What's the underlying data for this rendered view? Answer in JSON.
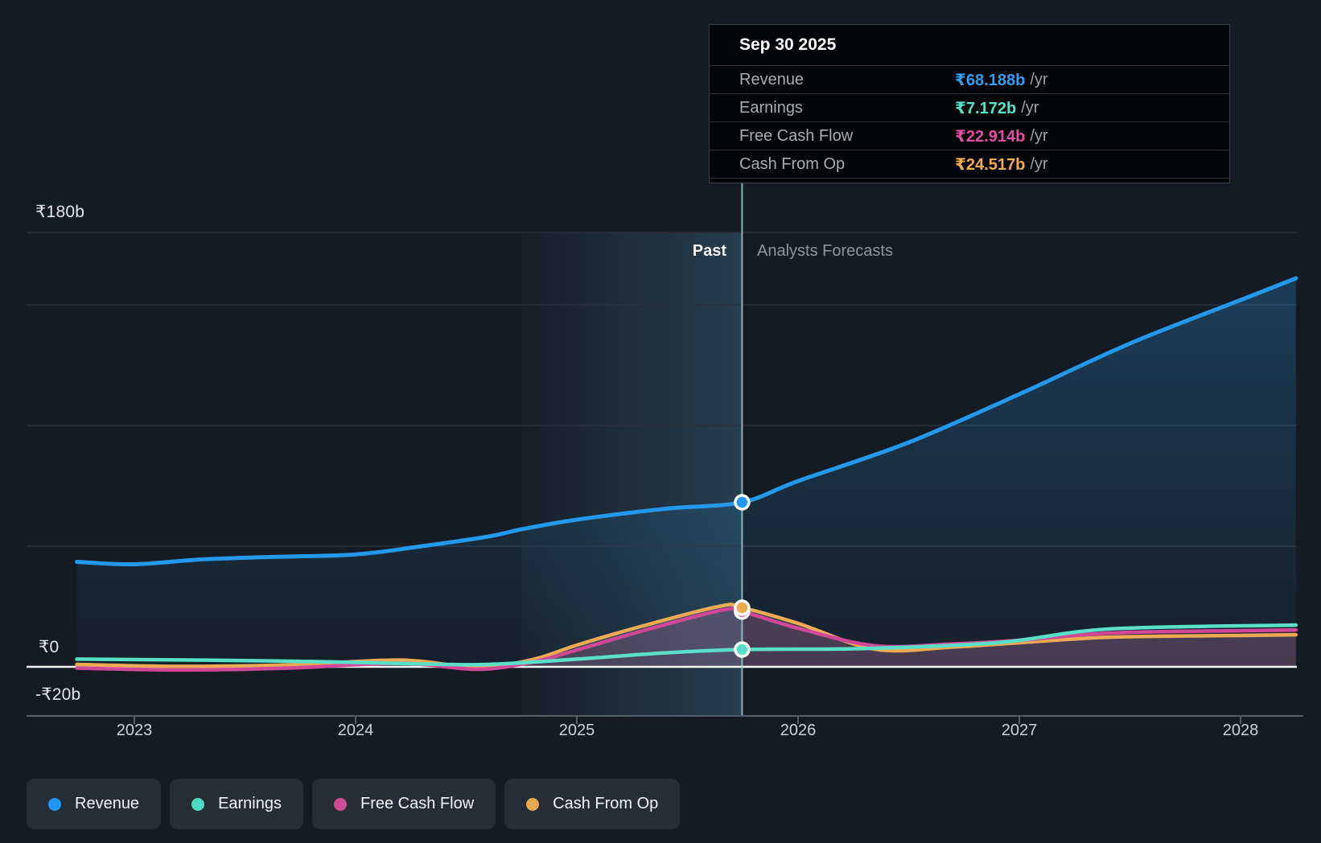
{
  "tooltip": {
    "date": "Sep 30 2025",
    "rows": [
      {
        "label": "Revenue",
        "value": "₹68.188b",
        "unit": "/yr",
        "color": "#2f9ef3"
      },
      {
        "label": "Earnings",
        "value": "₹7.172b",
        "unit": "/yr",
        "color": "#55e3cb"
      },
      {
        "label": "Free Cash Flow",
        "value": "₹22.914b",
        "unit": "/yr",
        "color": "#e64ba4"
      },
      {
        "label": "Cash From Op",
        "value": "₹24.517b",
        "unit": "/yr",
        "color": "#f3ac4f"
      }
    ]
  },
  "annotations": {
    "past": "Past",
    "forecast": "Analysts Forecasts"
  },
  "y_axis": {
    "top": "₹180b",
    "zero": "₹0",
    "bottom": "-₹20b"
  },
  "x_axis": {
    "labels": [
      "2023",
      "2024",
      "2025",
      "2026",
      "2027",
      "2028"
    ]
  },
  "legend": [
    {
      "label": "Revenue",
      "color": "#2196f3"
    },
    {
      "label": "Earnings",
      "color": "#4edbc5"
    },
    {
      "label": "Free Cash Flow",
      "color": "#cf4b96"
    },
    {
      "label": "Cash From Op",
      "color": "#e9a750"
    }
  ],
  "chart_data": {
    "type": "area",
    "x_unit": "year",
    "x_ticks": [
      2023,
      2024,
      2025,
      2026,
      2027,
      2028
    ],
    "ylim": [
      -20,
      180
    ],
    "currency": "INR (₹ billions)",
    "gridline_values": [
      180,
      150,
      100,
      50
    ],
    "zero_value": 0,
    "bottom_value": -20,
    "divider_year": 2025.747,
    "divider_date": "Sep 30 2025",
    "highlight_band": [
      2024.75,
      2025.747
    ],
    "legend_position": "bottom-left",
    "series": [
      {
        "name": "Revenue",
        "color": "#2499ec",
        "width": 5,
        "fill": "revenue",
        "points": [
          [
            2022.74,
            43.5
          ],
          [
            2023.0,
            42.5
          ],
          [
            2023.3,
            44.5
          ],
          [
            2023.6,
            45.5
          ],
          [
            2024.0,
            46.6
          ],
          [
            2024.3,
            50
          ],
          [
            2024.6,
            54
          ],
          [
            2024.75,
            57
          ],
          [
            2025.0,
            61
          ],
          [
            2025.4,
            65.5
          ],
          [
            2025.747,
            68.188
          ],
          [
            2026.0,
            77
          ],
          [
            2026.5,
            93
          ],
          [
            2027.0,
            113
          ],
          [
            2027.5,
            134
          ],
          [
            2028.0,
            152
          ],
          [
            2028.25,
            161
          ]
        ]
      },
      {
        "name": "Cash From Op",
        "color": "#ecaa52",
        "width": 4.5,
        "fill": "gray",
        "points": [
          [
            2022.74,
            1.0
          ],
          [
            2023.2,
            0.2
          ],
          [
            2023.7,
            0.8
          ],
          [
            2024.2,
            2.8
          ],
          [
            2024.55,
            -0.2
          ],
          [
            2024.8,
            3
          ],
          [
            2025.0,
            9
          ],
          [
            2025.3,
            17
          ],
          [
            2025.65,
            25.2
          ],
          [
            2025.747,
            24.517
          ],
          [
            2026.0,
            18
          ],
          [
            2026.35,
            7.3
          ],
          [
            2026.7,
            8.2
          ],
          [
            2027.0,
            10
          ],
          [
            2027.41,
            12.3
          ],
          [
            2028.0,
            13
          ],
          [
            2028.25,
            13.3
          ]
        ]
      },
      {
        "name": "Free Cash Flow",
        "color": "#d24898",
        "width": 4.5,
        "fill": "pink",
        "points": [
          [
            2022.74,
            -0.5
          ],
          [
            2023.2,
            -1.3
          ],
          [
            2023.7,
            -0.5
          ],
          [
            2024.2,
            1.5
          ],
          [
            2024.55,
            -1.0
          ],
          [
            2024.8,
            2
          ],
          [
            2025.0,
            7
          ],
          [
            2025.3,
            15
          ],
          [
            2025.65,
            23.4
          ],
          [
            2025.747,
            22.914
          ],
          [
            2026.0,
            16
          ],
          [
            2026.35,
            8.7
          ],
          [
            2026.7,
            9.5
          ],
          [
            2027.0,
            11
          ],
          [
            2027.41,
            14
          ],
          [
            2028.0,
            15
          ],
          [
            2028.25,
            15.3
          ]
        ]
      },
      {
        "name": "Earnings",
        "color": "#5adfc9",
        "width": 4.5,
        "fill": "none",
        "points": [
          [
            2022.74,
            3.2
          ],
          [
            2023.3,
            2.8
          ],
          [
            2023.8,
            2.2
          ],
          [
            2024.3,
            1.2
          ],
          [
            2024.6,
            1.0
          ],
          [
            2025.0,
            3.2
          ],
          [
            2025.4,
            5.8
          ],
          [
            2025.747,
            7.172
          ],
          [
            2026.3,
            7.6
          ],
          [
            2026.9,
            10
          ],
          [
            2027.41,
            15.7
          ],
          [
            2028.25,
            17.3
          ]
        ]
      }
    ],
    "markers": [
      {
        "series": "Revenue",
        "year": 2025.747,
        "value": 68.188,
        "color": "#2196f3"
      },
      {
        "series": "Free Cash Flow",
        "year": 2025.747,
        "value": 22.914,
        "color": "#d6479c"
      },
      {
        "series": "Cash From Op",
        "year": 2025.747,
        "value": 24.517,
        "color": "#eca851"
      },
      {
        "series": "Earnings",
        "year": 2025.747,
        "value": 7.172,
        "color": "#56dfc8"
      }
    ]
  }
}
